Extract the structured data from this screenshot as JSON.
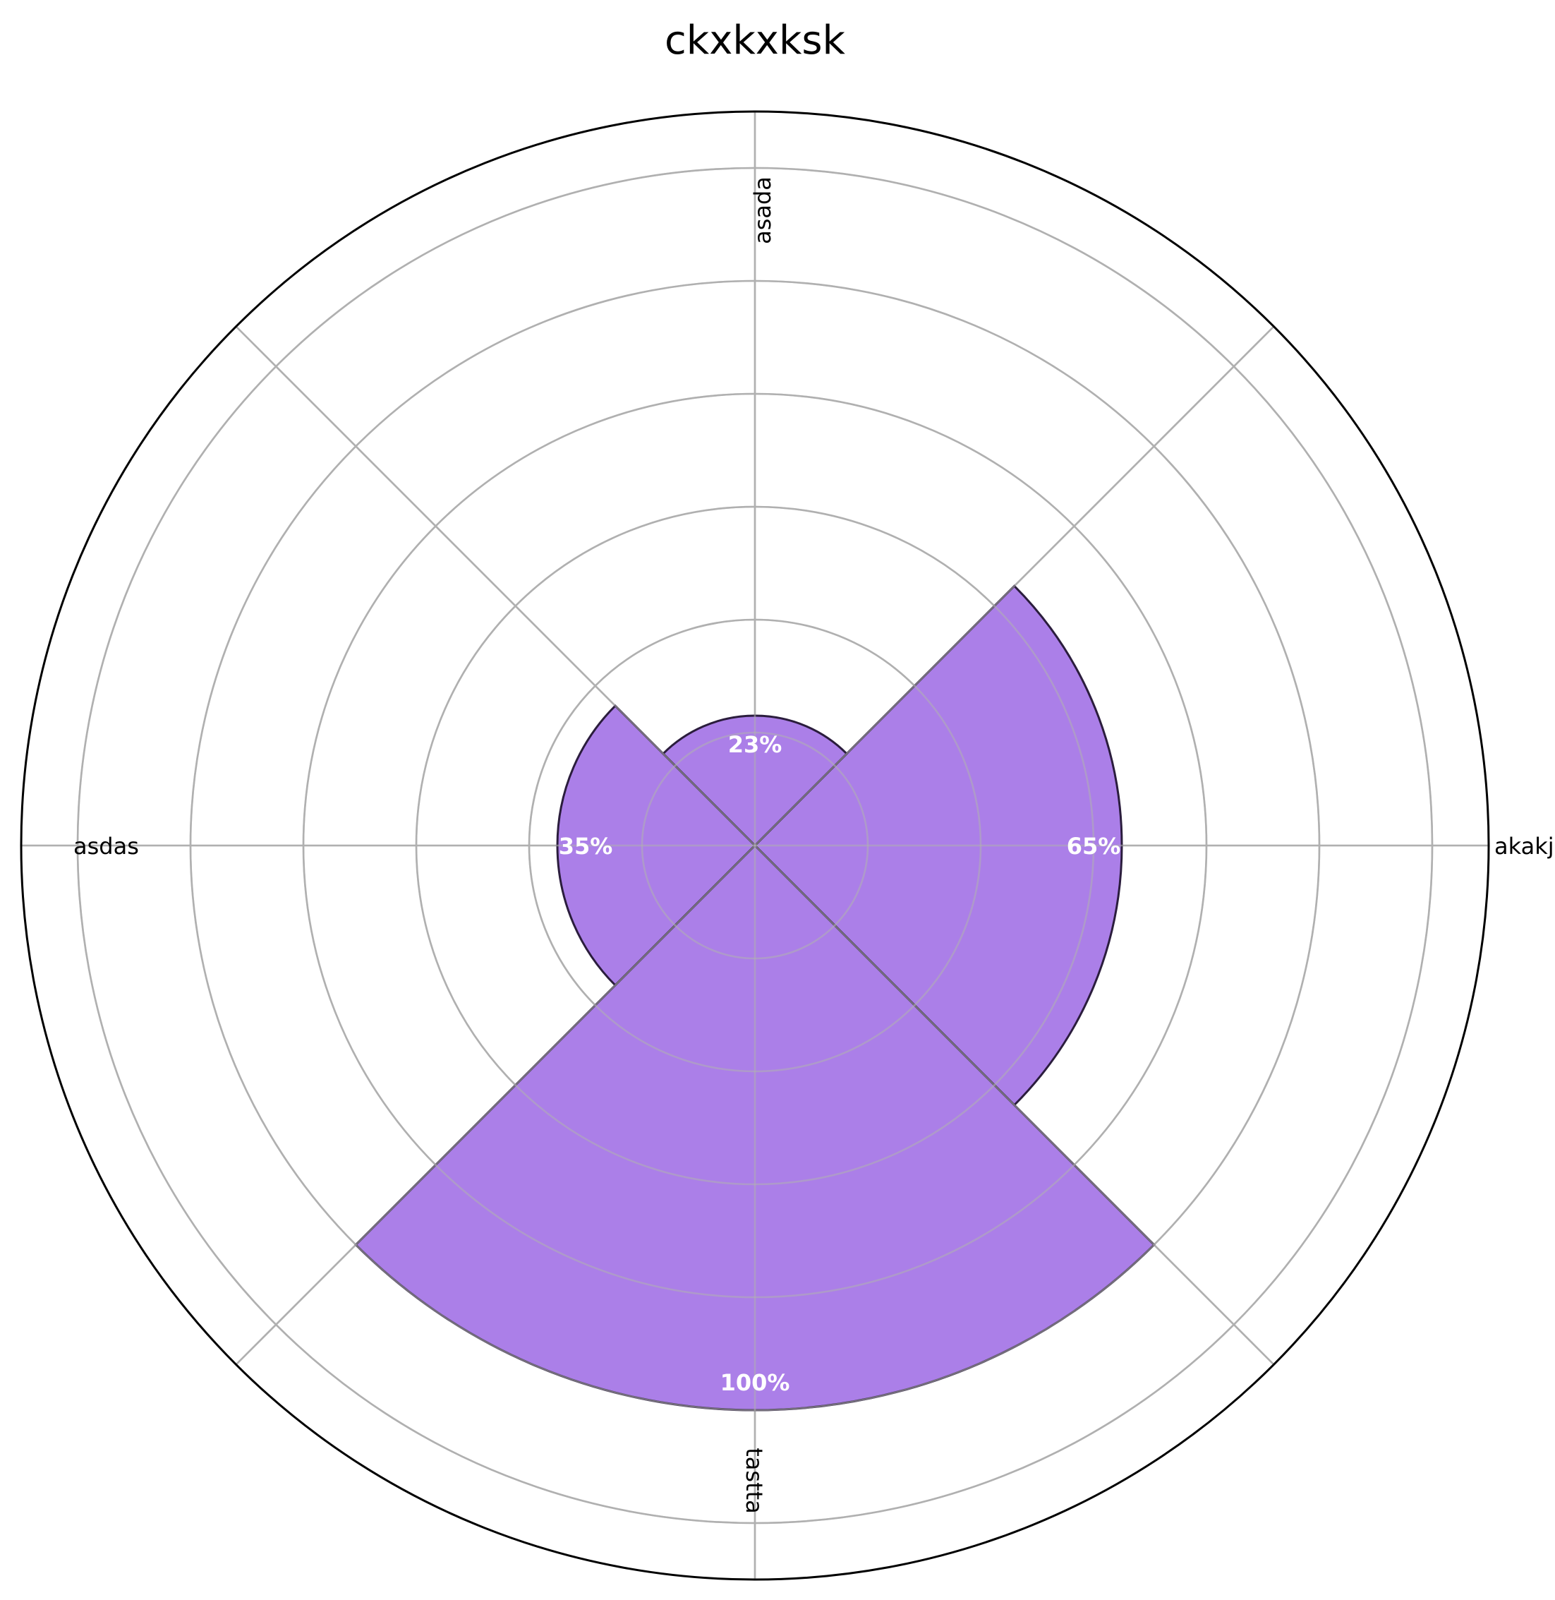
{
  "chart_data": {
    "type": "polar-bar",
    "title": "ckxkxksk",
    "categories": [
      "akakjda",
      "asada",
      "asdas",
      "tastta"
    ],
    "values": [
      65,
      23,
      35,
      100
    ],
    "value_labels": [
      "65%",
      "23%",
      "35%",
      "100%"
    ],
    "rlim": [
      0,
      130
    ],
    "grid": true,
    "bar_color": "#ab7fe8",
    "bar_edge_color": "#2b1d3d"
  }
}
